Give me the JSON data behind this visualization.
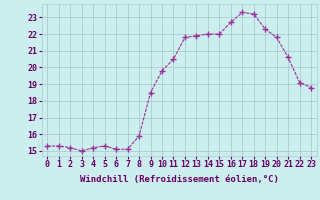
{
  "x": [
    0,
    1,
    2,
    3,
    4,
    5,
    6,
    7,
    8,
    9,
    10,
    11,
    12,
    13,
    14,
    15,
    16,
    17,
    18,
    19,
    20,
    21,
    22,
    23
  ],
  "y": [
    15.3,
    15.3,
    15.2,
    15.0,
    15.2,
    15.3,
    15.1,
    15.1,
    15.9,
    18.5,
    19.8,
    20.5,
    21.8,
    21.9,
    22.0,
    22.0,
    22.7,
    23.3,
    23.2,
    22.3,
    21.8,
    20.6,
    19.1,
    18.8
  ],
  "line_color": "#993399",
  "marker": "+",
  "marker_size": 4,
  "marker_lw": 1.0,
  "bg_color": "#cceeee",
  "grid_color": "#aacccc",
  "xlabel": "Windchill (Refroidissement éolien,°C)",
  "ylabel_ticks": [
    15,
    16,
    17,
    18,
    19,
    20,
    21,
    22,
    23
  ],
  "xlim": [
    -0.5,
    23.5
  ],
  "ylim": [
    14.7,
    23.8
  ],
  "xlabel_fontsize": 6.5,
  "tick_fontsize": 6.0,
  "label_color": "#660066",
  "xtick_labels": [
    "0",
    "1",
    "2",
    "3",
    "4",
    "5",
    "6",
    "7",
    "8",
    "9",
    "10",
    "11",
    "12",
    "13",
    "14",
    "15",
    "16",
    "17",
    "18",
    "19",
    "20",
    "21",
    "22",
    "23"
  ]
}
